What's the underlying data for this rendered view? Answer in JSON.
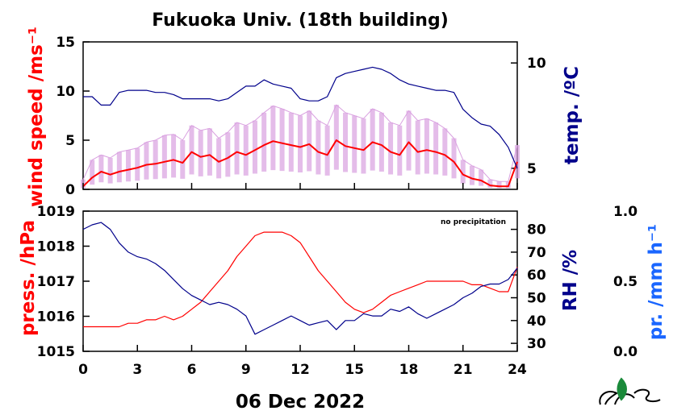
{
  "title": "Fukuoka Univ. (18th building)",
  "date_label": "06 Dec 2022",
  "note": "no precipitation",
  "colors": {
    "wind": "#ff0000",
    "wind_gust": "#d9a0e0",
    "temp": "#00008b",
    "press": "#ff0000",
    "rh": "#00008b",
    "precip": "#1a66ff",
    "axis": "#000000"
  },
  "chart_data": [
    {
      "type": "line",
      "panel": "top",
      "xlim": [
        0,
        24
      ],
      "left_axis": {
        "label": "wind speed /ms⁻¹",
        "ylim": [
          0,
          15
        ],
        "ticks": [
          0,
          5,
          10,
          15
        ]
      },
      "right_axis": {
        "label": "temp. /ºC",
        "ylim": [
          4,
          11
        ],
        "ticks": [
          5,
          10
        ]
      },
      "series": [
        {
          "name": "wind speed",
          "axis": "left",
          "x": [
            0,
            0.5,
            1,
            1.5,
            2,
            2.5,
            3,
            3.5,
            4,
            4.5,
            5,
            5.5,
            6,
            6.5,
            7,
            7.5,
            8,
            8.5,
            9,
            9.5,
            10,
            10.5,
            11,
            11.5,
            12,
            12.5,
            13,
            13.5,
            14,
            14.5,
            15,
            15.5,
            16,
            16.5,
            17,
            17.5,
            18,
            18.5,
            19,
            19.5,
            20,
            20.5,
            21,
            21.5,
            22,
            22.5,
            23,
            23.5,
            24
          ],
          "y": [
            0.3,
            1.2,
            1.8,
            1.5,
            1.8,
            2.0,
            2.2,
            2.5,
            2.6,
            2.8,
            3.0,
            2.7,
            3.8,
            3.3,
            3.5,
            2.8,
            3.2,
            3.8,
            3.5,
            4.0,
            4.5,
            4.9,
            4.7,
            4.5,
            4.3,
            4.6,
            3.8,
            3.5,
            5.0,
            4.4,
            4.2,
            4.0,
            4.8,
            4.5,
            3.8,
            3.5,
            4.8,
            3.8,
            4.0,
            3.8,
            3.5,
            2.8,
            1.5,
            1.1,
            0.9,
            0.4,
            0.3,
            0.3,
            2.8
          ]
        },
        {
          "name": "temperature",
          "axis": "right",
          "x": [
            0,
            0.5,
            1,
            1.5,
            2,
            2.5,
            3,
            3.5,
            4,
            4.5,
            5,
            5.5,
            6,
            6.5,
            7,
            7.5,
            8,
            8.5,
            9,
            9.5,
            10,
            10.5,
            11,
            11.5,
            12,
            12.5,
            13,
            13.5,
            14,
            14.5,
            15,
            15.5,
            16,
            16.5,
            17,
            17.5,
            18,
            18.5,
            19,
            19.5,
            20,
            20.5,
            21,
            21.5,
            22,
            22.5,
            23,
            23.5,
            24
          ],
          "y": [
            8.4,
            8.4,
            8.0,
            8.0,
            8.6,
            8.7,
            8.7,
            8.7,
            8.6,
            8.6,
            8.5,
            8.3,
            8.3,
            8.3,
            8.3,
            8.2,
            8.3,
            8.6,
            8.9,
            8.9,
            9.2,
            9.0,
            8.9,
            8.8,
            8.3,
            8.2,
            8.2,
            8.4,
            9.3,
            9.5,
            9.6,
            9.7,
            9.8,
            9.7,
            9.5,
            9.2,
            9.0,
            8.9,
            8.8,
            8.7,
            8.7,
            8.6,
            7.8,
            7.4,
            7.1,
            7.0,
            6.6,
            6.0,
            5.0
          ]
        },
        {
          "name": "wind gust",
          "axis": "left",
          "x": [
            0,
            0.5,
            1,
            1.5,
            2,
            2.5,
            3,
            3.5,
            4,
            4.5,
            5,
            5.5,
            6,
            6.5,
            7,
            7.5,
            8,
            8.5,
            9,
            9.5,
            10,
            10.5,
            11,
            11.5,
            12,
            12.5,
            13,
            13.5,
            14,
            14.5,
            15,
            15.5,
            16,
            16.5,
            17,
            17.5,
            18,
            18.5,
            19,
            19.5,
            20,
            20.5,
            21,
            21.5,
            22,
            22.5,
            23,
            23.5,
            24
          ],
          "y": [
            1.0,
            3.0,
            3.5,
            3.2,
            3.8,
            4.0,
            4.2,
            4.8,
            5.0,
            5.5,
            5.6,
            5.0,
            6.5,
            6.0,
            6.2,
            5.2,
            5.8,
            6.8,
            6.5,
            7.0,
            7.8,
            8.5,
            8.2,
            7.8,
            7.5,
            8.0,
            7.0,
            6.5,
            8.6,
            7.8,
            7.5,
            7.2,
            8.2,
            7.8,
            6.8,
            6.5,
            8.0,
            7.0,
            7.2,
            6.8,
            6.2,
            5.2,
            3.0,
            2.4,
            2.0,
            1.0,
            0.8,
            0.8,
            4.5
          ]
        }
      ]
    },
    {
      "type": "line",
      "panel": "bottom",
      "xlim": [
        0,
        24
      ],
      "xticks": [
        0,
        3,
        6,
        9,
        12,
        15,
        18,
        21,
        24
      ],
      "left_axis": {
        "label": "press. /hPa",
        "ylim": [
          1015,
          1019
        ],
        "ticks": [
          1015,
          1016,
          1017,
          1018,
          1019
        ]
      },
      "right_axis": {
        "label": "RH /%",
        "ylim": [
          26.5,
          88
        ],
        "ticks": [
          30,
          40,
          50,
          60,
          70,
          80
        ]
      },
      "far_right_axis": {
        "label": "pr. /mm h⁻¹",
        "ylim": [
          0,
          1
        ],
        "ticks": [
          "0.0",
          "0.5",
          "1.0"
        ]
      },
      "series": [
        {
          "name": "pressure",
          "axis": "left",
          "x": [
            0,
            0.5,
            1,
            1.5,
            2,
            2.5,
            3,
            3.5,
            4,
            4.5,
            5,
            5.5,
            6,
            6.5,
            7,
            7.5,
            8,
            8.5,
            9,
            9.5,
            10,
            10.5,
            11,
            11.5,
            12,
            12.5,
            13,
            13.5,
            14,
            14.5,
            15,
            15.5,
            16,
            16.5,
            17,
            17.5,
            18,
            18.5,
            19,
            19.5,
            20,
            20.5,
            21,
            21.5,
            22,
            22.5,
            23,
            23.5,
            24
          ],
          "y": [
            1015.7,
            1015.7,
            1015.7,
            1015.7,
            1015.7,
            1015.8,
            1015.8,
            1015.9,
            1015.9,
            1016.0,
            1015.9,
            1016.0,
            1016.2,
            1016.4,
            1016.7,
            1017.0,
            1017.3,
            1017.7,
            1018.0,
            1018.3,
            1018.4,
            1018.4,
            1018.4,
            1018.3,
            1018.1,
            1017.7,
            1017.3,
            1017.0,
            1016.7,
            1016.4,
            1016.2,
            1016.1,
            1016.2,
            1016.4,
            1016.6,
            1016.7,
            1016.8,
            1016.9,
            1017.0,
            1017.0,
            1017.0,
            1017.0,
            1017.0,
            1016.9,
            1016.9,
            1016.8,
            1016.7,
            1016.7,
            1017.4
          ]
        },
        {
          "name": "relative humidity",
          "axis": "right",
          "x": [
            0,
            0.5,
            1,
            1.5,
            2,
            2.5,
            3,
            3.5,
            4,
            4.5,
            5,
            5.5,
            6,
            6.5,
            7,
            7.5,
            8,
            8.5,
            9,
            9.5,
            10,
            10.5,
            11,
            11.5,
            12,
            12.5,
            13,
            13.5,
            14,
            14.5,
            15,
            15.5,
            16,
            16.5,
            17,
            17.5,
            18,
            18.5,
            19,
            19.5,
            20,
            20.5,
            21,
            21.5,
            22,
            22.5,
            23,
            23.5,
            24
          ],
          "y": [
            80,
            82,
            83,
            80,
            74,
            70,
            68,
            67,
            65,
            62,
            58,
            54,
            51,
            49,
            47,
            48,
            47,
            45,
            42,
            34,
            36,
            38,
            40,
            42,
            40,
            38,
            39,
            40,
            36,
            40,
            40,
            43,
            42,
            42,
            45,
            44,
            46,
            43,
            41,
            43,
            45,
            47,
            50,
            52,
            55,
            56,
            56,
            58,
            63
          ]
        }
      ]
    }
  ]
}
